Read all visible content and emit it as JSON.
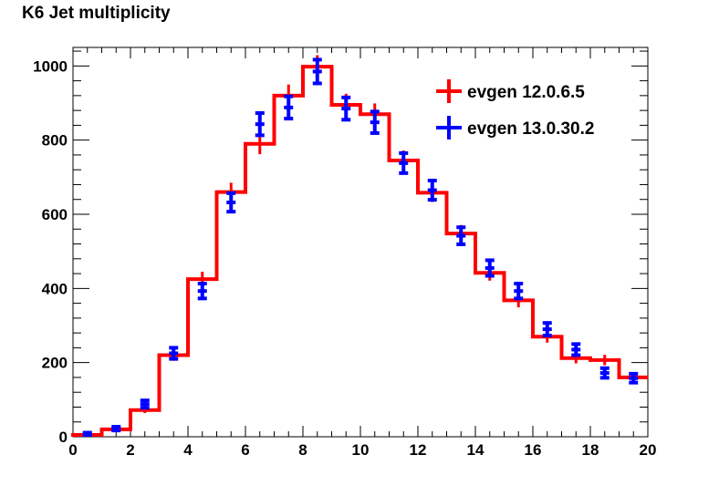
{
  "chart_data": {
    "type": "line",
    "title": "K6 Jet multiplicity",
    "xlabel": "",
    "ylabel": "",
    "xlim": [
      0,
      20
    ],
    "ylim": [
      0,
      1050
    ],
    "x_ticks": [
      0,
      2,
      4,
      6,
      8,
      10,
      12,
      14,
      16,
      18,
      20
    ],
    "y_ticks": [
      0,
      200,
      400,
      600,
      800,
      1000
    ],
    "legend_position": "top-right",
    "grid": false,
    "bin_edges": [
      0,
      1,
      2,
      3,
      4,
      5,
      6,
      7,
      8,
      9,
      10,
      11,
      12,
      13,
      14,
      15,
      16,
      17,
      18,
      19,
      20
    ],
    "series": [
      {
        "name": "evgen 12.0.6.5",
        "color": "#ff0000",
        "style": "histogram-step",
        "values": [
          5,
          20,
          72,
          220,
          425,
          660,
          790,
          920,
          998,
          895,
          870,
          745,
          658,
          548,
          442,
          368,
          270,
          212,
          207,
          160
        ],
        "errors": [
          2,
          4,
          8,
          15,
          20,
          25,
          28,
          30,
          31,
          30,
          29,
          27,
          25,
          23,
          21,
          19,
          16,
          14,
          14,
          12
        ]
      },
      {
        "name": "evgen 13.0.30.2",
        "color": "#0000ff",
        "style": "points-errorbars",
        "values": [
          8,
          22,
          88,
          225,
          393,
          632,
          843,
          888,
          985,
          885,
          848,
          738,
          665,
          542,
          455,
          393,
          290,
          235,
          172,
          158
        ],
        "errors": [
          3,
          5,
          10,
          15,
          20,
          25,
          30,
          30,
          32,
          30,
          29,
          27,
          26,
          23,
          21,
          20,
          17,
          15,
          13,
          12
        ]
      }
    ]
  }
}
